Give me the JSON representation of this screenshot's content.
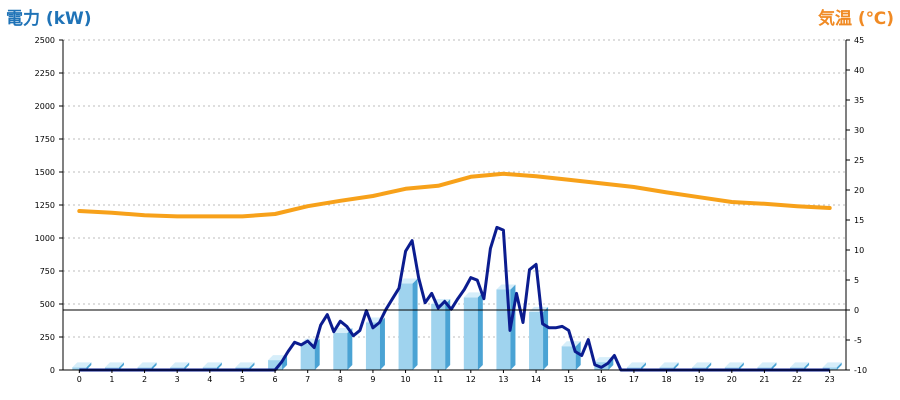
{
  "chart_data": {
    "type": "bar+line",
    "ylabel_left": "電力 (kW)",
    "ylabel_right": "気温 (℃)",
    "x_ticks": [
      "0",
      "1",
      "2",
      "3",
      "4",
      "5",
      "6",
      "7",
      "8",
      "9",
      "10",
      "11",
      "12",
      "13",
      "14",
      "15",
      "16",
      "17",
      "18",
      "19",
      "20",
      "21",
      "22",
      "23"
    ],
    "y_left_ticks": [
      "0",
      "250",
      "500",
      "750",
      "1000",
      "1250",
      "1500",
      "1750",
      "2000",
      "2250",
      "2500"
    ],
    "y_right_ticks": [
      "-10",
      "-5",
      "0",
      "5",
      "10",
      "15",
      "20",
      "25",
      "30",
      "35",
      "40",
      "45"
    ],
    "ylim_left": [
      0,
      2500
    ],
    "ylim_right": [
      -10,
      45
    ],
    "grid": true,
    "colors": {
      "bar_front": "#9fd3ee",
      "bar_side": "#4aa3d4",
      "bar_top": "#d6eefa",
      "power_line": "#0b1c8f",
      "temperature_line": "#f7a11a",
      "axis": "#000000",
      "grid": "#bdbdbd"
    },
    "series": [
      {
        "kind": "bar",
        "axis": "left",
        "categories": [
          "0",
          "1",
          "2",
          "3",
          "4",
          "5",
          "6",
          "7",
          "8",
          "9",
          "10",
          "11",
          "12",
          "13",
          "14",
          "15",
          "16",
          "17",
          "18",
          "19",
          "20",
          "21",
          "22",
          "23"
        ],
        "values": [
          20,
          20,
          20,
          20,
          20,
          20,
          75,
          200,
          280,
          360,
          655,
          500,
          550,
          610,
          440,
          180,
          60,
          20,
          20,
          20,
          20,
          20,
          20,
          20
        ]
      },
      {
        "kind": "line",
        "axis": "left",
        "x": [
          0,
          5,
          6,
          6.2,
          6.4,
          6.6,
          6.8,
          7,
          7.2,
          7.4,
          7.6,
          7.8,
          8,
          8.2,
          8.4,
          8.6,
          8.8,
          9,
          9.2,
          9.4,
          9.6,
          9.8,
          10,
          10.2,
          10.4,
          10.6,
          10.8,
          11,
          11.2,
          11.4,
          11.6,
          11.8,
          12,
          12.2,
          12.4,
          12.6,
          12.8,
          13,
          13.2,
          13.4,
          13.6,
          13.8,
          14,
          14.2,
          14.4,
          14.6,
          14.8,
          15,
          15.2,
          15.4,
          15.6,
          15.8,
          16,
          16.2,
          16.4,
          16.6,
          16.8,
          17,
          23
        ],
        "y": [
          0,
          0,
          0,
          60,
          140,
          210,
          190,
          220,
          170,
          340,
          420,
          290,
          370,
          330,
          260,
          300,
          450,
          320,
          360,
          460,
          540,
          620,
          900,
          980,
          700,
          510,
          580,
          470,
          520,
          460,
          540,
          610,
          700,
          680,
          540,
          920,
          1080,
          1060,
          300,
          580,
          360,
          760,
          800,
          350,
          320,
          320,
          330,
          300,
          140,
          110,
          230,
          40,
          20,
          50,
          110,
          0,
          0,
          0,
          0
        ]
      },
      {
        "kind": "line",
        "axis": "right",
        "x": [
          0,
          1,
          2,
          3,
          4,
          5,
          6,
          7,
          8,
          9,
          10,
          11,
          12,
          13,
          14,
          15,
          16,
          17,
          18,
          19,
          20,
          21,
          22,
          23
        ],
        "y": [
          16.5,
          16.2,
          15.8,
          15.6,
          15.6,
          15.6,
          16,
          17.3,
          18.2,
          19,
          20.2,
          20.7,
          22.2,
          22.7,
          22.3,
          21.7,
          21.1,
          20.5,
          19.6,
          18.8,
          18,
          17.7,
          17.3,
          17
        ]
      }
    ]
  }
}
